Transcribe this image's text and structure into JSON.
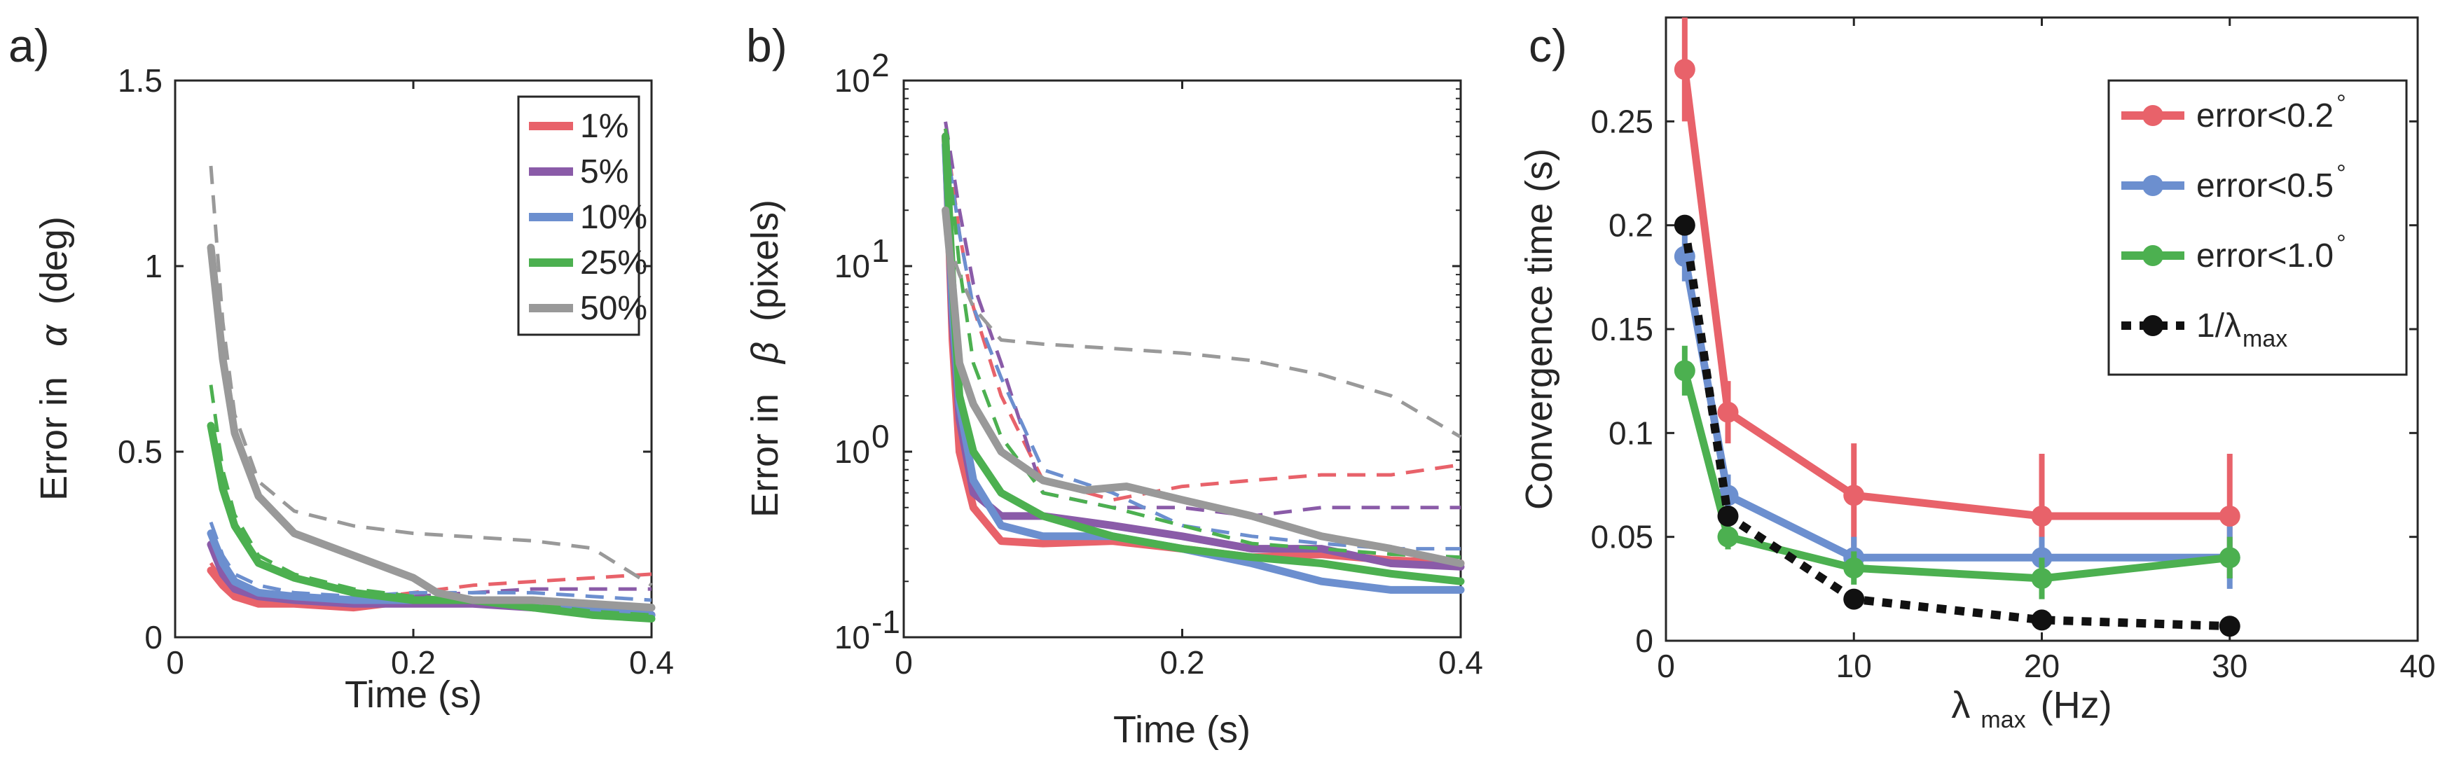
{
  "chart_data": [
    {
      "panel": "a)",
      "type": "line",
      "xlabel": "Time (s)",
      "ylabel_prefix": "Error in",
      "ylabel_symbol": "α",
      "ylabel_suffix": "(deg)",
      "xlim": [
        0,
        0.4
      ],
      "ylim": [
        0,
        1.5
      ],
      "yscale": "linear",
      "xticks": [
        0,
        0.2,
        0.4
      ],
      "xtick_labels": [
        "0",
        "0.2",
        "0.4"
      ],
      "yticks": [
        0,
        0.5,
        1,
        1.5
      ],
      "ytick_labels": [
        "0",
        "0.5",
        "1",
        "1.5"
      ],
      "legend": {
        "placement": "top-right",
        "entries": [
          {
            "label": "1%",
            "color": "#E8626A"
          },
          {
            "label": "5%",
            "color": "#8A5BA8"
          },
          {
            "label": "10%",
            "color": "#6C8FCF"
          },
          {
            "label": "25%",
            "color": "#4CB050"
          },
          {
            "label": "50%",
            "color": "#999999"
          }
        ]
      },
      "series": [
        {
          "name": "1%",
          "style": "solid",
          "color": "#E8626A",
          "x": [
            0.03,
            0.04,
            0.05,
            0.07,
            0.1,
            0.15,
            0.2,
            0.25,
            0.3,
            0.35,
            0.4
          ],
          "y": [
            0.18,
            0.14,
            0.11,
            0.09,
            0.09,
            0.08,
            0.1,
            0.1,
            0.08,
            0.07,
            0.06
          ]
        },
        {
          "name": "1%",
          "style": "dashed",
          "color": "#E8626A",
          "x": [
            0.03,
            0.04,
            0.05,
            0.07,
            0.1,
            0.15,
            0.2,
            0.25,
            0.3,
            0.35,
            0.4
          ],
          "y": [
            0.2,
            0.15,
            0.12,
            0.1,
            0.1,
            0.1,
            0.12,
            0.14,
            0.15,
            0.16,
            0.17
          ]
        },
        {
          "name": "5%",
          "style": "solid",
          "color": "#8A5BA8",
          "x": [
            0.03,
            0.04,
            0.05,
            0.07,
            0.1,
            0.15,
            0.2,
            0.25,
            0.3,
            0.35,
            0.4
          ],
          "y": [
            0.25,
            0.17,
            0.13,
            0.11,
            0.1,
            0.09,
            0.09,
            0.09,
            0.08,
            0.07,
            0.06
          ]
        },
        {
          "name": "5%",
          "style": "dashed",
          "color": "#8A5BA8",
          "x": [
            0.03,
            0.04,
            0.05,
            0.07,
            0.1,
            0.15,
            0.2,
            0.25,
            0.3,
            0.35,
            0.4
          ],
          "y": [
            0.28,
            0.19,
            0.15,
            0.12,
            0.11,
            0.1,
            0.11,
            0.12,
            0.13,
            0.13,
            0.13
          ]
        },
        {
          "name": "10%",
          "style": "solid",
          "color": "#6C8FCF",
          "x": [
            0.03,
            0.04,
            0.05,
            0.07,
            0.1,
            0.15,
            0.2,
            0.25,
            0.3,
            0.35,
            0.4
          ],
          "y": [
            0.28,
            0.2,
            0.15,
            0.12,
            0.11,
            0.1,
            0.1,
            0.1,
            0.09,
            0.07,
            0.06
          ]
        },
        {
          "name": "10%",
          "style": "dashed",
          "color": "#6C8FCF",
          "x": [
            0.03,
            0.04,
            0.05,
            0.07,
            0.1,
            0.15,
            0.2,
            0.25,
            0.3,
            0.35,
            0.4
          ],
          "y": [
            0.31,
            0.22,
            0.17,
            0.14,
            0.12,
            0.11,
            0.12,
            0.12,
            0.12,
            0.11,
            0.1
          ]
        },
        {
          "name": "25%",
          "style": "solid",
          "color": "#4CB050",
          "x": [
            0.03,
            0.04,
            0.05,
            0.07,
            0.1,
            0.15,
            0.2,
            0.25,
            0.3,
            0.35,
            0.4
          ],
          "y": [
            0.57,
            0.4,
            0.3,
            0.2,
            0.16,
            0.12,
            0.1,
            0.1,
            0.08,
            0.06,
            0.05
          ]
        },
        {
          "name": "25%",
          "style": "dashed",
          "color": "#4CB050",
          "x": [
            0.03,
            0.04,
            0.05,
            0.07,
            0.1,
            0.15,
            0.2,
            0.25,
            0.3,
            0.35,
            0.4
          ],
          "y": [
            0.68,
            0.45,
            0.33,
            0.22,
            0.17,
            0.13,
            0.11,
            0.1,
            0.09,
            0.07,
            0.06
          ]
        },
        {
          "name": "50%",
          "style": "solid",
          "color": "#999999",
          "x": [
            0.03,
            0.04,
            0.05,
            0.07,
            0.1,
            0.15,
            0.2,
            0.22,
            0.25,
            0.3,
            0.35,
            0.4
          ],
          "y": [
            1.05,
            0.75,
            0.55,
            0.38,
            0.28,
            0.22,
            0.16,
            0.12,
            0.1,
            0.1,
            0.09,
            0.08
          ]
        },
        {
          "name": "50%",
          "style": "dashed",
          "color": "#999999",
          "x": [
            0.03,
            0.04,
            0.05,
            0.07,
            0.1,
            0.15,
            0.2,
            0.25,
            0.3,
            0.35,
            0.4
          ],
          "y": [
            1.27,
            0.85,
            0.6,
            0.42,
            0.34,
            0.3,
            0.28,
            0.27,
            0.26,
            0.24,
            0.14
          ]
        }
      ]
    },
    {
      "panel": "b)",
      "type": "line",
      "xlabel": "Time (s)",
      "ylabel_prefix": "Error in",
      "ylabel_symbol": "β",
      "ylabel_suffix": "(pixels)",
      "xlim": [
        0,
        0.4
      ],
      "ylim": [
        0.1,
        100
      ],
      "yscale": "log",
      "xticks": [
        0,
        0.2,
        0.4
      ],
      "xtick_labels": [
        "0",
        "0.2",
        "0.4"
      ],
      "yticks": [
        0.1,
        1,
        10,
        100
      ],
      "ytick_bases": [
        "10",
        "10",
        "10",
        "10"
      ],
      "ytick_exponents": [
        "-1",
        "0",
        "1",
        "2"
      ],
      "series": [
        {
          "name": "1%",
          "style": "solid",
          "color": "#E8626A",
          "x": [
            0.03,
            0.035,
            0.04,
            0.05,
            0.07,
            0.1,
            0.15,
            0.2,
            0.25,
            0.3,
            0.35,
            0.4
          ],
          "y": [
            50,
            4,
            1,
            0.5,
            0.33,
            0.32,
            0.33,
            0.3,
            0.27,
            0.28,
            0.26,
            0.25
          ]
        },
        {
          "name": "1%",
          "style": "dashed",
          "color": "#E8626A",
          "x": [
            0.03,
            0.04,
            0.05,
            0.07,
            0.1,
            0.15,
            0.2,
            0.25,
            0.3,
            0.35,
            0.4
          ],
          "y": [
            55,
            15,
            6,
            2,
            0.7,
            0.55,
            0.65,
            0.7,
            0.75,
            0.75,
            0.85
          ]
        },
        {
          "name": "5%",
          "style": "solid",
          "color": "#8A5BA8",
          "x": [
            0.03,
            0.035,
            0.04,
            0.05,
            0.07,
            0.1,
            0.15,
            0.2,
            0.25,
            0.3,
            0.35,
            0.4
          ],
          "y": [
            50,
            5,
            1.5,
            0.6,
            0.45,
            0.45,
            0.4,
            0.35,
            0.3,
            0.3,
            0.25,
            0.24
          ]
        },
        {
          "name": "5%",
          "style": "dashed",
          "color": "#8A5BA8",
          "x": [
            0.03,
            0.04,
            0.05,
            0.07,
            0.1,
            0.15,
            0.2,
            0.25,
            0.3,
            0.35,
            0.4
          ],
          "y": [
            60,
            20,
            8,
            3,
            0.6,
            0.5,
            0.5,
            0.45,
            0.5,
            0.5,
            0.5
          ]
        },
        {
          "name": "10%",
          "style": "solid",
          "color": "#6C8FCF",
          "x": [
            0.03,
            0.035,
            0.04,
            0.05,
            0.07,
            0.1,
            0.15,
            0.2,
            0.25,
            0.3,
            0.35,
            0.4
          ],
          "y": [
            45,
            6,
            1.8,
            0.7,
            0.4,
            0.35,
            0.35,
            0.3,
            0.25,
            0.2,
            0.18,
            0.18
          ]
        },
        {
          "name": "10%",
          "style": "dashed",
          "color": "#6C8FCF",
          "x": [
            0.03,
            0.04,
            0.05,
            0.07,
            0.1,
            0.15,
            0.2,
            0.25,
            0.3,
            0.35,
            0.4
          ],
          "y": [
            50,
            15,
            6,
            2.5,
            0.8,
            0.6,
            0.4,
            0.35,
            0.32,
            0.3,
            0.3
          ]
        },
        {
          "name": "25%",
          "style": "solid",
          "color": "#4CB050",
          "x": [
            0.03,
            0.035,
            0.04,
            0.05,
            0.07,
            0.1,
            0.15,
            0.2,
            0.25,
            0.3,
            0.35,
            0.4
          ],
          "y": [
            50,
            8,
            2,
            1,
            0.6,
            0.45,
            0.35,
            0.3,
            0.27,
            0.25,
            0.22,
            0.2
          ]
        },
        {
          "name": "25%",
          "style": "dashed",
          "color": "#4CB050",
          "x": [
            0.03,
            0.04,
            0.05,
            0.07,
            0.1,
            0.15,
            0.2,
            0.25,
            0.3,
            0.35,
            0.4
          ],
          "y": [
            55,
            10,
            3,
            1.2,
            0.6,
            0.5,
            0.4,
            0.32,
            0.3,
            0.28,
            0.27
          ]
        },
        {
          "name": "50%",
          "style": "solid",
          "color": "#999999",
          "x": [
            0.03,
            0.035,
            0.04,
            0.05,
            0.07,
            0.1,
            0.13,
            0.16,
            0.2,
            0.25,
            0.3,
            0.35,
            0.4
          ],
          "y": [
            20,
            8,
            3,
            1.8,
            1.0,
            0.7,
            0.62,
            0.65,
            0.55,
            0.45,
            0.35,
            0.3,
            0.25
          ]
        },
        {
          "name": "50%",
          "style": "dashed",
          "color": "#999999",
          "x": [
            0.03,
            0.04,
            0.05,
            0.07,
            0.1,
            0.15,
            0.2,
            0.25,
            0.3,
            0.35,
            0.4
          ],
          "y": [
            15,
            9,
            6,
            4,
            3.8,
            3.6,
            3.4,
            3.1,
            2.6,
            2,
            1.2
          ]
        }
      ]
    },
    {
      "panel": "c)",
      "type": "line",
      "xlabel_symbol": "λ",
      "xlabel_sub": "max",
      "xlabel_suffix": "(Hz)",
      "ylabel": "Convergence time (s)",
      "xlim": [
        0,
        40
      ],
      "ylim": [
        0,
        0.3
      ],
      "yscale": "linear",
      "xticks": [
        0,
        10,
        20,
        30,
        40
      ],
      "xtick_labels": [
        "0",
        "10",
        "20",
        "30",
        "40"
      ],
      "yticks": [
        0,
        0.05,
        0.1,
        0.15,
        0.2,
        0.25
      ],
      "ytick_labels": [
        "0",
        "0.05",
        "0.1",
        "0.15",
        "0.2",
        "0.25"
      ],
      "legend": {
        "placement": "top-right",
        "entries": [
          {
            "label": "error<0.2",
            "sup": "°",
            "color": "#E8626A",
            "style": "solid"
          },
          {
            "label": "error<0.5",
            "sup": "°",
            "color": "#6C8FCF",
            "style": "solid"
          },
          {
            "label": "error<1.0",
            "sup": "°",
            "color": "#4CB050",
            "style": "solid"
          },
          {
            "label": "1/λ",
            "sub": "max",
            "color": "#111111",
            "style": "dotted"
          }
        ]
      },
      "series": [
        {
          "name": "error<0.2°",
          "style": "solid",
          "color": "#E8626A",
          "x": [
            1,
            3.3,
            10,
            20,
            30
          ],
          "y": [
            0.275,
            0.11,
            0.07,
            0.06,
            0.06
          ],
          "err": [
            0.025,
            0.015,
            0.025,
            0.03,
            0.03
          ]
        },
        {
          "name": "error<0.5°",
          "style": "solid",
          "color": "#6C8FCF",
          "x": [
            1,
            3.3,
            10,
            20,
            30
          ],
          "y": [
            0.185,
            0.07,
            0.04,
            0.04,
            0.04
          ],
          "err": [
            0.012,
            0.01,
            0.01,
            0.01,
            0.015
          ]
        },
        {
          "name": "error<1.0°",
          "style": "solid",
          "color": "#4CB050",
          "x": [
            1,
            3.3,
            10,
            20,
            30
          ],
          "y": [
            0.13,
            0.05,
            0.035,
            0.03,
            0.04
          ],
          "err": [
            0.012,
            0.006,
            0.008,
            0.01,
            0.01
          ]
        },
        {
          "name": "1/λmax",
          "style": "dotted",
          "color": "#111111",
          "x": [
            1,
            3.3,
            10,
            20,
            30
          ],
          "y": [
            0.2,
            0.06,
            0.02,
            0.01,
            0.007
          ],
          "err": [
            0,
            0,
            0,
            0,
            0
          ]
        }
      ]
    }
  ]
}
